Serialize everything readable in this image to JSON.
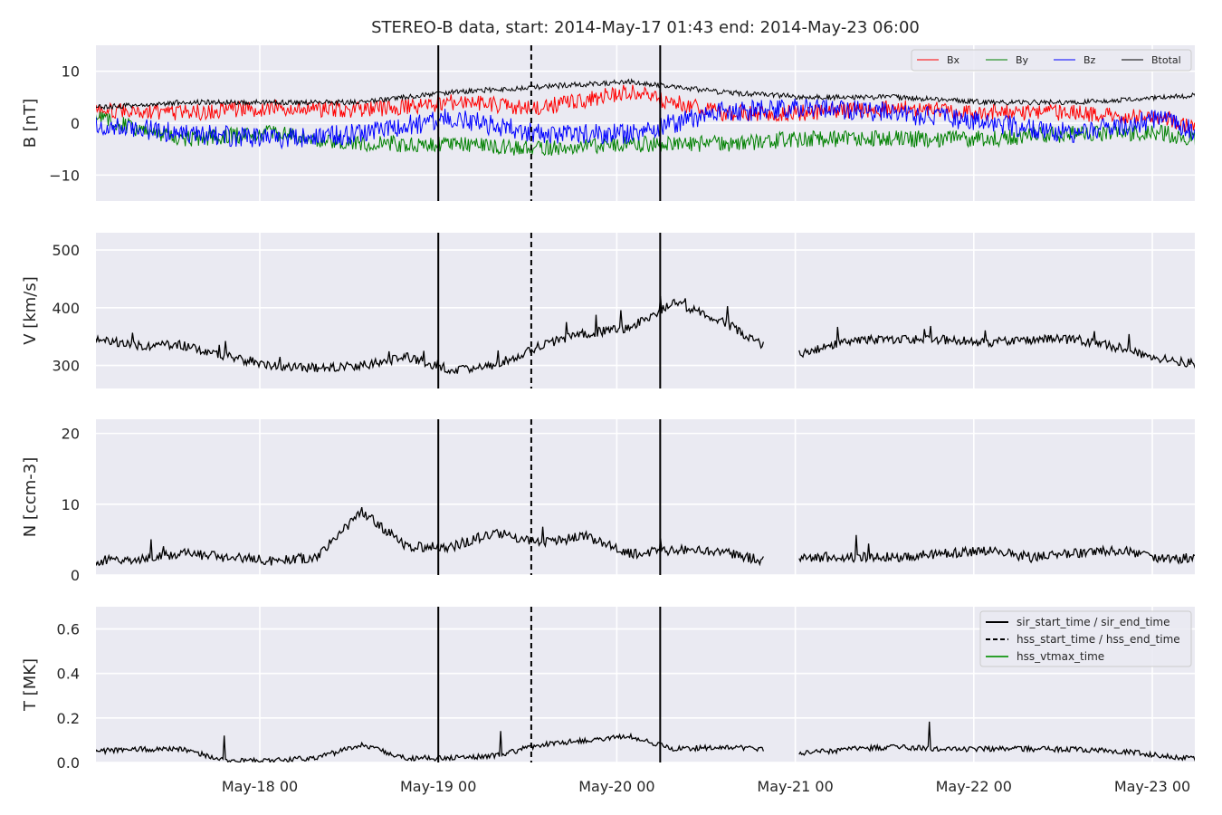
{
  "title": "STEREO-B data, start: 2014-May-17 01:43  end: 2014-May-23 06:00",
  "chart_data": {
    "type": "line",
    "title": "STEREO-B data, start: 2014-May-17 01:43  end: 2014-May-23 06:00",
    "x_range": [
      "2014-05-17 01:43",
      "2014-05-23 06:00"
    ],
    "x_tick_labels": [
      "May-18 00",
      "May-19 00",
      "May-20 00",
      "May-21 00",
      "May-22 00",
      "May-23 00"
    ],
    "x_ticks": [
      "2014-05-18 00:00",
      "2014-05-19 00:00",
      "2014-05-20 00:00",
      "2014-05-21 00:00",
      "2014-05-22 00:00",
      "2014-05-23 00:00"
    ],
    "grid": true,
    "event_lines": {
      "sir_start_time": "2014-05-19 00:00",
      "hss_start_time": "2014-05-19 12:30",
      "sir_end_time": "2014-05-20 05:50"
    },
    "colors": {
      "Bx": "#ff0000",
      "By": "#008000",
      "Bz": "#0000ff",
      "Btotal": "#000000",
      "hss_vtmax_time": "#2ca02c",
      "panel_bg": "#eaeaf2"
    },
    "panels": [
      {
        "id": "B",
        "ylabel": "B [nT]",
        "ylim": [
          -15,
          15
        ],
        "yticks": [
          -10,
          0,
          10
        ],
        "ytick_labels": [
          "−10",
          "0",
          "10"
        ],
        "legend": {
          "placement": "top-right",
          "entries": [
            "Bx",
            "By",
            "Bz",
            "Btotal"
          ]
        },
        "series": [
          {
            "name": "Bx",
            "t": [
              0,
              0.5,
              1,
              1.5,
              2,
              2.5,
              3,
              3.5,
              4,
              4.5,
              5,
              5.5,
              6,
              6.25
            ],
            "y": [
              2.5,
              2,
              3,
              2.5,
              4,
              3,
              6,
              2,
              2,
              3,
              2,
              2,
              1,
              -2
            ]
          },
          {
            "name": "By",
            "t": [
              0,
              0.5,
              1,
              1.5,
              2,
              2.5,
              3,
              3.5,
              4,
              4.5,
              5,
              5.5,
              6,
              6.25
            ],
            "y": [
              1,
              -3,
              -2,
              -4,
              -4,
              -5,
              -4,
              -4,
              -3,
              -3,
              -3,
              -2,
              -2,
              -4
            ]
          },
          {
            "name": "Bz",
            "t": [
              0,
              0.5,
              1,
              1.5,
              2,
              2.5,
              3,
              3.5,
              4,
              4.5,
              5,
              5.5,
              6,
              6.25
            ],
            "y": [
              0,
              -2,
              -3,
              -2,
              1,
              -2,
              -2,
              2,
              3,
              2,
              0,
              -2,
              1,
              -3
            ]
          },
          {
            "name": "Btotal",
            "t": [
              0,
              0.5,
              1,
              1.5,
              2,
              2.5,
              3,
              3.5,
              4,
              4.5,
              5,
              5.5,
              6,
              6.25
            ],
            "y": [
              3,
              4,
              4,
              4,
              6,
              7,
              8,
              6,
              5,
              5,
              4,
              4,
              5,
              5.5
            ]
          }
        ]
      },
      {
        "id": "V",
        "ylabel": "V [km/s]",
        "ylim": [
          260,
          530
        ],
        "yticks": [
          300,
          400,
          500
        ],
        "ytick_labels": [
          "300",
          "400",
          "500"
        ],
        "series": [
          {
            "name": "V",
            "segments": [
              {
                "t": [
                  0,
                  0.25,
                  0.5,
                  0.75,
                  1,
                  1.25,
                  1.5,
                  1.75,
                  2,
                  2.25,
                  2.5,
                  2.75,
                  3,
                  3.25,
                  3.5,
                  3.75
                ],
                "y": [
                  345,
                  335,
                  335,
                  315,
                  300,
                  295,
                  300,
                  315,
                  292,
                  300,
                  335,
                  355,
                  365,
                  410,
                  380,
                  335
                ]
              },
              {
                "t": [
                  3.95,
                  4.25,
                  4.5,
                  4.75,
                  5,
                  5.25,
                  5.5,
                  5.75,
                  6,
                  6.25
                ],
                "y": [
                  320,
                  345,
                  345,
                  345,
                  340,
                  345,
                  345,
                  330,
                  310,
                  298
                ]
              }
            ]
          }
        ]
      },
      {
        "id": "N",
        "ylabel": "N [ccm-3]",
        "ylim": [
          0,
          22
        ],
        "yticks": [
          0,
          10,
          20
        ],
        "ytick_labels": [
          "0",
          "10",
          "20"
        ],
        "series": [
          {
            "name": "N",
            "segments": [
              {
                "t": [
                  0,
                  0.25,
                  0.5,
                  0.75,
                  1,
                  1.25,
                  1.5,
                  1.75,
                  2,
                  2.25,
                  2.5,
                  2.75,
                  3,
                  3.25,
                  3.5,
                  3.75
                ],
                "y": [
                  2,
                  2.3,
                  3,
                  2.5,
                  2,
                  2.5,
                  9,
                  4,
                  4,
                  6,
                  4.5,
                  5.5,
                  3,
                  3.5,
                  3.5,
                  2
                ]
              },
              {
                "t": [
                  3.95,
                  4.25,
                  4.5,
                  4.75,
                  5,
                  5.25,
                  5.5,
                  5.75,
                  6,
                  6.25
                ],
                "y": [
                  2.5,
                  2.5,
                  2.5,
                  3,
                  3.5,
                  2.5,
                  3,
                  3.5,
                  2.3,
                  2.5
                ]
              }
            ]
          }
        ]
      },
      {
        "id": "T",
        "ylabel": "T [MK]",
        "ylim": [
          0,
          0.7
        ],
        "yticks": [
          0.0,
          0.2,
          0.4,
          0.6
        ],
        "ytick_labels": [
          "0.0",
          "0.2",
          "0.4",
          "0.6"
        ],
        "legend": {
          "placement": "top-right",
          "entries": [
            "sir_start_time / sir_end_time",
            "hss_start_time / hss_end_time",
            "hss_vtmax_time"
          ]
        },
        "series": [
          {
            "name": "T",
            "segments": [
              {
                "t": [
                  0,
                  0.25,
                  0.5,
                  0.75,
                  1,
                  1.25,
                  1.5,
                  1.75,
                  2,
                  2.25,
                  2.5,
                  2.75,
                  3,
                  3.25,
                  3.5,
                  3.75
                ],
                "y": [
                  0.05,
                  0.06,
                  0.06,
                  0.005,
                  0.01,
                  0.02,
                  0.08,
                  0.02,
                  0.02,
                  0.03,
                  0.08,
                  0.1,
                  0.12,
                  0.06,
                  0.07,
                  0.06
                ]
              },
              {
                "t": [
                  3.95,
                  4.25,
                  4.5,
                  4.75,
                  5,
                  5.25,
                  5.5,
                  5.75,
                  6,
                  6.25
                ],
                "y": [
                  0.04,
                  0.06,
                  0.07,
                  0.06,
                  0.06,
                  0.06,
                  0.06,
                  0.05,
                  0.03,
                  0.01
                ]
              }
            ]
          }
        ]
      }
    ]
  }
}
